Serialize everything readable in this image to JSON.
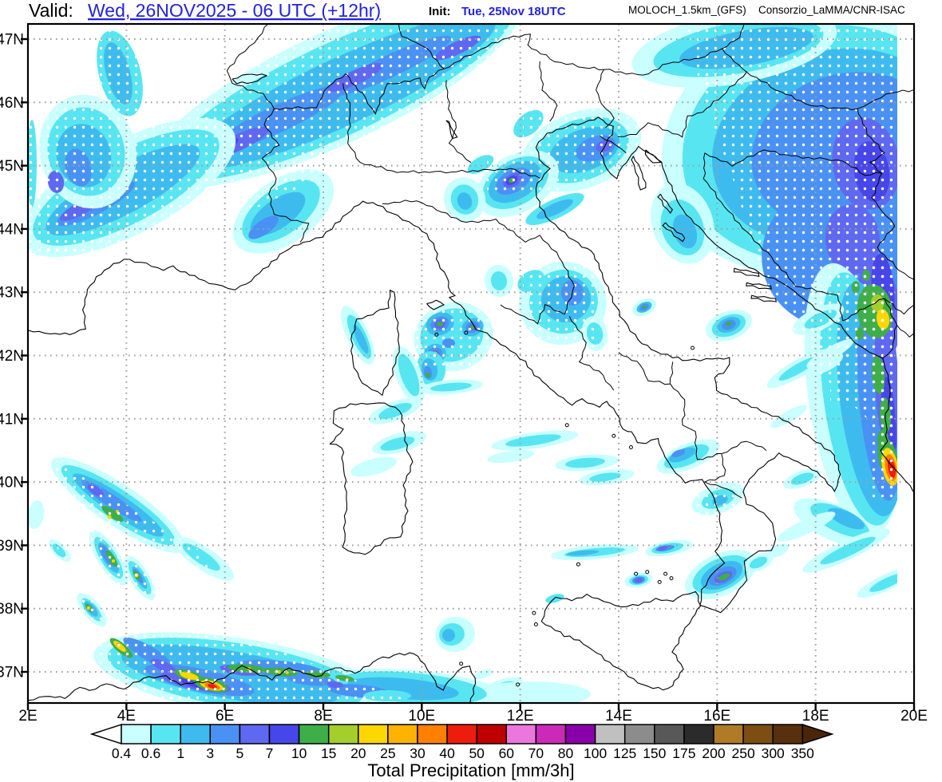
{
  "title": {
    "valid_label": "Valid:",
    "valid_value": "Wed, 26NOV2025 - 06 UTC (+12hr)",
    "init_label": "Init:",
    "init_value": "Tue, 25Nov 18UTC",
    "model": "MOLOCH_1.5km_(GFS)",
    "org": "Consorzio_LaMMA/CNR-ISAC",
    "valid_color": "#2323DC",
    "init_color": "#2323DC"
  },
  "axes": {
    "lat_labels": [
      "47N",
      "46N",
      "45N",
      "44N",
      "43N",
      "42N",
      "41N",
      "40N",
      "39N",
      "38N",
      "37N"
    ],
    "lat_values": [
      47,
      46,
      45,
      44,
      43,
      42,
      41,
      40,
      39,
      38,
      37
    ],
    "lon_labels": [
      "2E",
      "4E",
      "6E",
      "8E",
      "10E",
      "12E",
      "14E",
      "16E",
      "18E",
      "20E"
    ],
    "lon_values": [
      2,
      4,
      6,
      8,
      10,
      12,
      14,
      16,
      18,
      20
    ]
  },
  "colorbar": {
    "boundary_labels": [
      "0.4",
      "0.6",
      "1",
      "3",
      "5",
      "7",
      "10",
      "15",
      "20",
      "25",
      "30",
      "40",
      "50",
      "60",
      "70",
      "80",
      "100",
      "125",
      "150",
      "175",
      "200",
      "250",
      "300",
      "350"
    ],
    "segment_colors": [
      "#C9FFFF",
      "#58E5F2",
      "#3EBBEE",
      "#4A91F4",
      "#5F68F0",
      "#4646EA",
      "#3EAE49",
      "#A4CE2C",
      "#FFD700",
      "#FFB300",
      "#FF7F00",
      "#EE1C0C",
      "#BE0000",
      "#EC77DC",
      "#CB2AB8",
      "#8A00A8",
      "#C0C0C0",
      "#8C8C8C",
      "#585858",
      "#2B2B2B",
      "#B07B26",
      "#7C4E12",
      "#58300E"
    ],
    "title": "Total Precipitation [mm/3h]",
    "left_arrow_color": "#FFFFFF",
    "right_arrow_color": "#4A2609"
  },
  "map": {
    "grid_color": "#9E9E9E",
    "coast_color": "#000000",
    "stipple_color": "#FFFFFF"
  }
}
